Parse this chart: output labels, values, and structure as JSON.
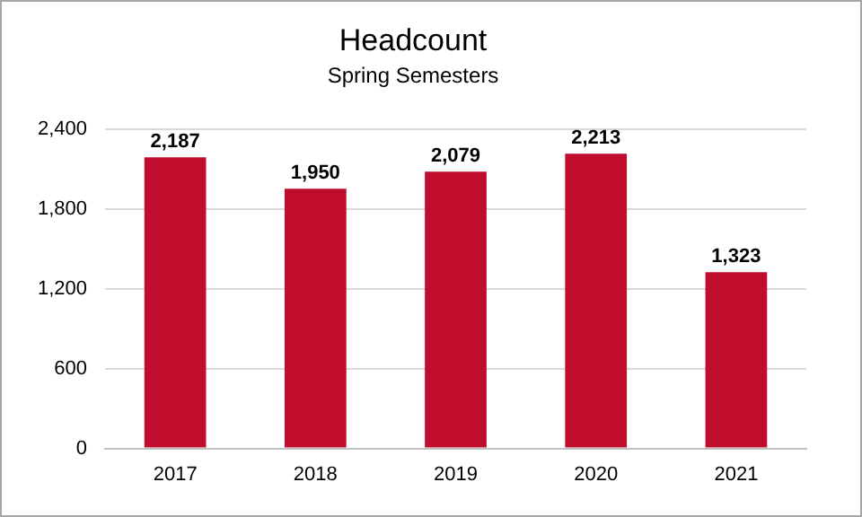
{
  "chart_data": {
    "type": "bar",
    "title": "Headcount",
    "subtitle": "Spring Semesters",
    "categories": [
      "2017",
      "2018",
      "2019",
      "2020",
      "2021"
    ],
    "values": [
      2187,
      1950,
      2079,
      2213,
      1323
    ],
    "color": "#c00d2e",
    "ylim": [
      0,
      2400
    ],
    "yticks": [
      {
        "value": 0,
        "label": "0"
      },
      {
        "value": 600,
        "label": "600"
      },
      {
        "value": 1200,
        "label": "1,200"
      },
      {
        "value": 1800,
        "label": "1,800"
      },
      {
        "value": 2400,
        "label": "2,400"
      }
    ],
    "value_labels": [
      "2,187",
      "1,950",
      "2,079",
      "2,213",
      "1,323"
    ],
    "grid": "y"
  }
}
